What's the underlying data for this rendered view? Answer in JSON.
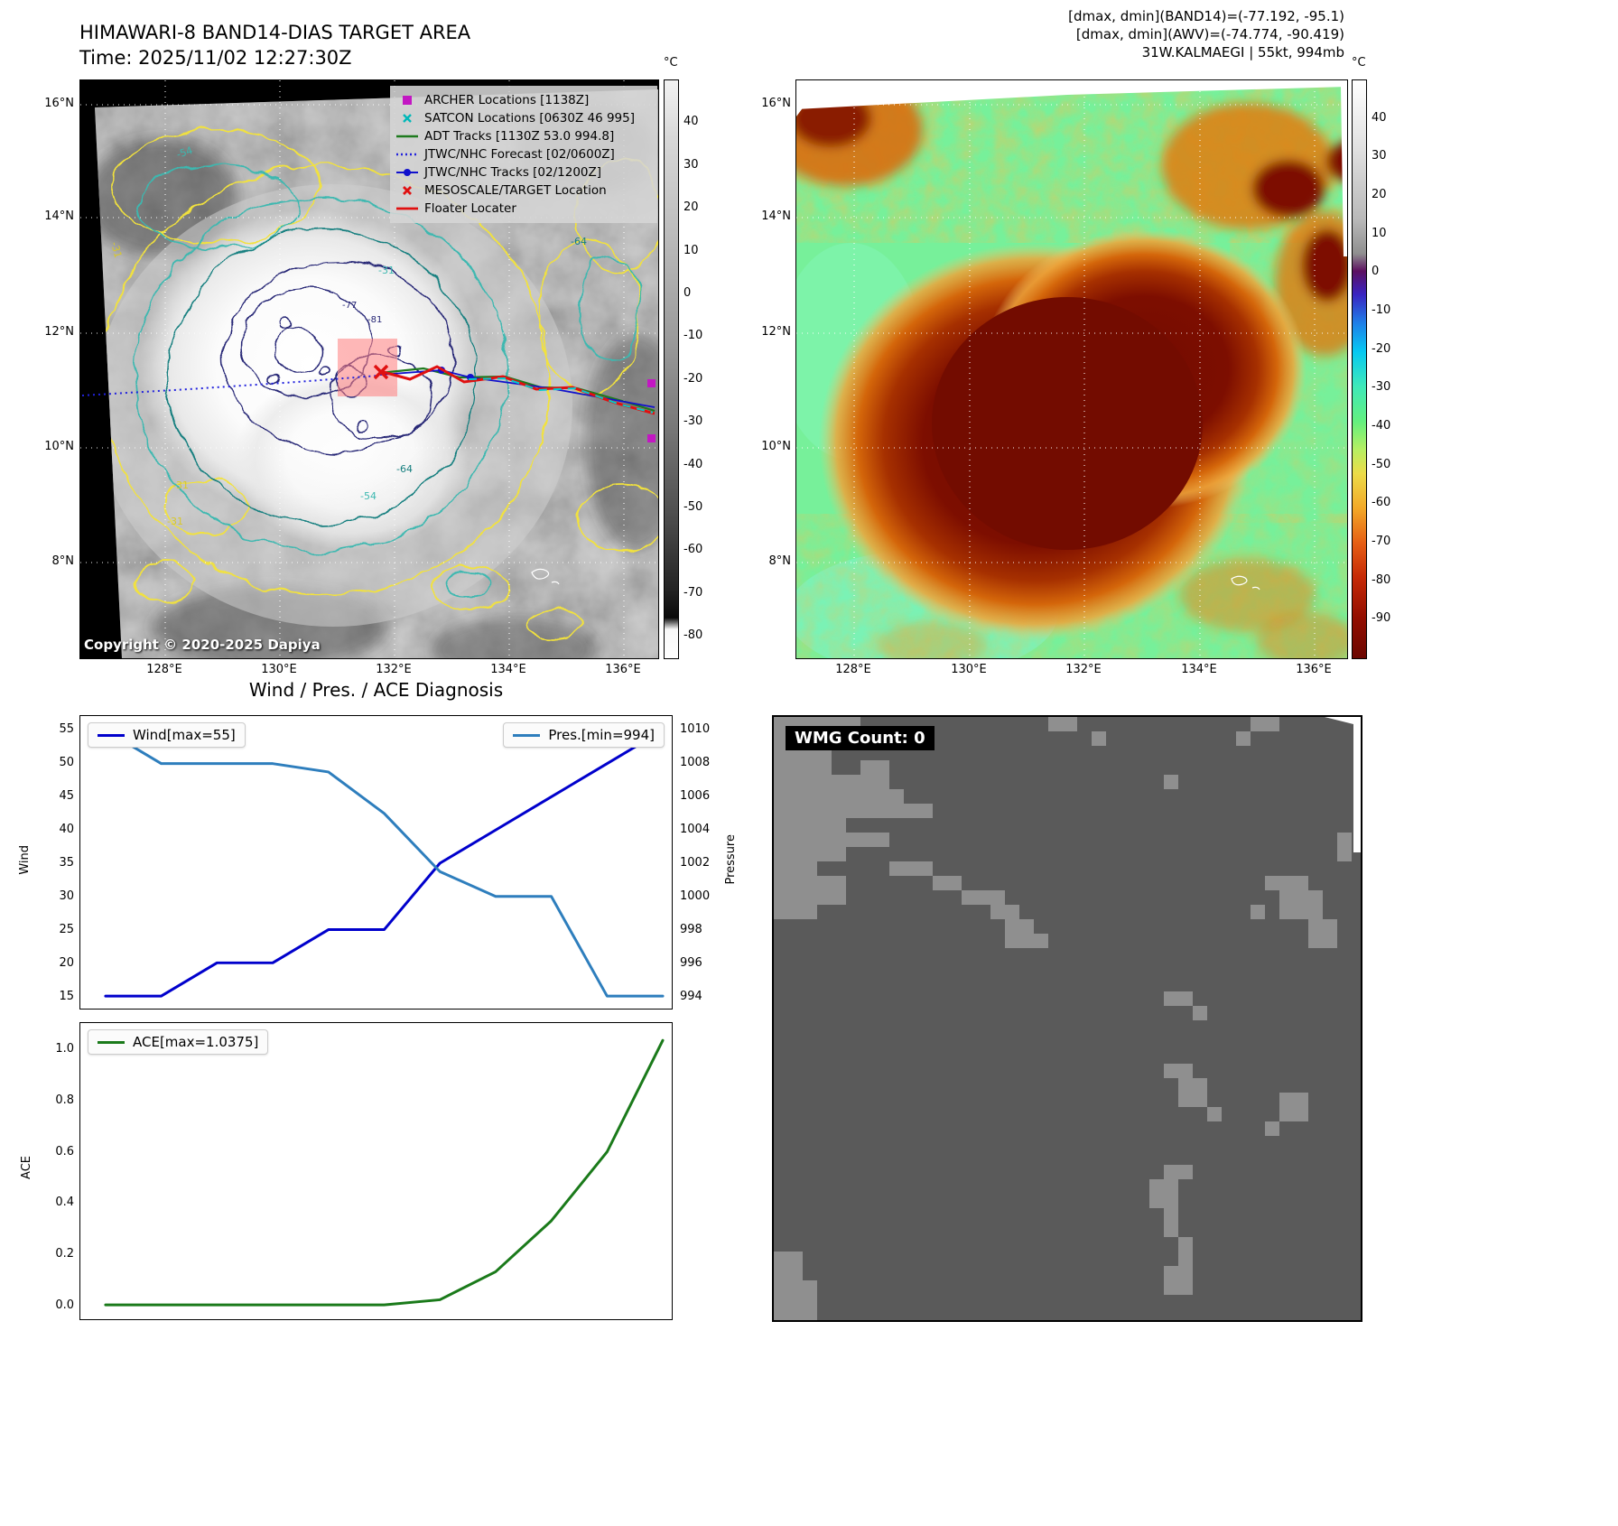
{
  "map_axes": {
    "lat": [
      "16°N",
      "14°N",
      "12°N",
      "10°N",
      "8°N"
    ],
    "lon": [
      "128°E",
      "130°E",
      "132°E",
      "134°E",
      "136°E"
    ]
  },
  "band14": {
    "title": "HIMAWARI-8 BAND14-DIAS TARGET AREA",
    "time_label": "Time: 2025/11/02 12:27:30Z",
    "copyright": "Copyright © 2020-2025 Dapiya",
    "colorbar_unit": "°C",
    "colorbar_ticks": [
      "40",
      "30",
      "20",
      "10",
      "0",
      "-10",
      "-20",
      "-30",
      "-40",
      "-50",
      "-60",
      "-70",
      "-80"
    ],
    "contour_labels": {
      "n31": "-31",
      "n54": "-54",
      "n64": "-64",
      "n77": "-77",
      "n81": "-81"
    },
    "legend": [
      {
        "label": "ARCHER Locations [1138Z]",
        "marker": "square",
        "color": "#c317c3"
      },
      {
        "label": "SATCON Locations [0630Z 46 995]",
        "marker": "x",
        "color": "#00b8b8"
      },
      {
        "label": "ADT Tracks [1130Z 53.0 994.8]",
        "marker": "line",
        "color": "#1e7a1e"
      },
      {
        "label": "JTWC/NHC Forecast [02/0600Z]",
        "marker": "dotted-line",
        "color": "#2222dd"
      },
      {
        "label": "JTWC/NHC Tracks [02/1200Z]",
        "marker": "line-dot",
        "color": "#1111cc"
      },
      {
        "label": "MESOSCALE/TARGET Location",
        "marker": "x",
        "color": "#e01010"
      },
      {
        "label": "Floater Locater",
        "marker": "line",
        "color": "#e01010"
      }
    ]
  },
  "awv": {
    "header_line1": "[dmax, dmin](BAND14)=(-77.192, -95.1)",
    "header_line2": "[dmax, dmin](AWV)=(-74.774, -90.419)",
    "header_line3": "31W.KALMAEGI | 55kt, 994mb",
    "colorbar_unit": "°C",
    "colorbar_ticks": [
      "40",
      "30",
      "20",
      "10",
      "0",
      "-10",
      "-20",
      "-30",
      "-40",
      "-50",
      "-60",
      "-70",
      "-80",
      "-90"
    ]
  },
  "wmg": {
    "title": "WMG Count: 0"
  },
  "chart_data": [
    {
      "type": "line",
      "title": "Wind / Pres. / ACE Diagnosis",
      "x": [
        0,
        1,
        2,
        3,
        4,
        5,
        6,
        7,
        8,
        9,
        10
      ],
      "series": [
        {
          "name": "Wind[max=55]",
          "color": "#0000cc",
          "axis": "left",
          "values": [
            15,
            15,
            20,
            20,
            25,
            25,
            35,
            40,
            45,
            50,
            55
          ]
        },
        {
          "name": "Pres.[min=994]",
          "color": "#2e7ebd",
          "axis": "right",
          "values": [
            1010,
            1008,
            1008,
            1008,
            1007.5,
            1005,
            1001.5,
            1000,
            1000,
            994,
            994
          ]
        }
      ],
      "left_axis": {
        "label": "Wind",
        "min": 15,
        "max": 55,
        "ticks": [
          15,
          20,
          25,
          30,
          35,
          40,
          45,
          50,
          55
        ]
      },
      "right_axis": {
        "label": "Pressure",
        "min": 994,
        "max": 1010,
        "ticks": [
          994,
          996,
          998,
          1000,
          1002,
          1004,
          1006,
          1008,
          1010
        ]
      },
      "grid": false,
      "legend_position": "wind: top-left, pressure: top-right"
    },
    {
      "type": "line",
      "title": "",
      "x": [
        0,
        1,
        2,
        3,
        4,
        5,
        6,
        7,
        8,
        9,
        10
      ],
      "series": [
        {
          "name": "ACE[max=1.0375]",
          "color": "#1a7a1a",
          "axis": "left",
          "values": [
            0,
            0,
            0,
            0,
            0,
            0,
            0.02,
            0.13,
            0.33,
            0.6,
            1.0375
          ]
        }
      ],
      "left_axis": {
        "label": "ACE",
        "min": 0,
        "max": 1.0,
        "ticks": [
          "0.0",
          "0.2",
          "0.4",
          "0.6",
          "0.8",
          "1.0"
        ]
      },
      "grid": false,
      "legend_position": "top-left"
    }
  ]
}
